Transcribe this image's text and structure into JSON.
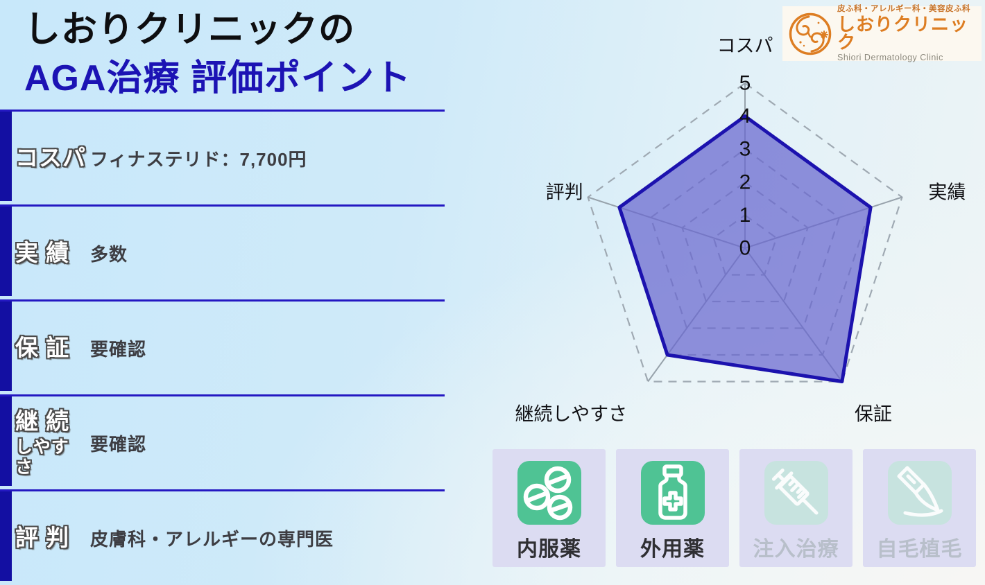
{
  "header": {
    "title_line1": "しおりクリニックの",
    "title_line2": "AGA治療 評価ポイント"
  },
  "rows": [
    {
      "key": "cospa",
      "label": "コスパ",
      "label2": "",
      "value": "フィナステリド：7,700円"
    },
    {
      "key": "jisseki",
      "label": "実 績",
      "label2": "",
      "value": "多数"
    },
    {
      "key": "hoshou",
      "label": "保 証",
      "label2": "",
      "value": "要確認"
    },
    {
      "key": "keizoku",
      "label": "継 続",
      "label2": "しやすさ",
      "value": "要確認"
    },
    {
      "key": "hyouban",
      "label": "評 判",
      "label2": "",
      "value": "皮膚科・アレルギーの専門医"
    }
  ],
  "logo": {
    "tagline": "皮ふ科・アレルギー科・美容皮ふ科",
    "name": "しおりクリニック",
    "subtitle": "Shiori Dermatology Clinic",
    "mark": "s-swirl-icon",
    "orange": "#dd7d22"
  },
  "chart_data": {
    "type": "radar",
    "categories": [
      "コスパ",
      "実績",
      "保証",
      "継続しやすさ",
      "評判"
    ],
    "values": [
      4,
      4,
      5,
      4,
      4
    ],
    "rmin": 0,
    "rmax": 5,
    "ticks": [
      "0",
      "1",
      "2",
      "3",
      "4",
      "5"
    ],
    "grid": "dashed-pentagon-rings",
    "grid_color": "#9fa9b2",
    "spoke_color": "#97a2ab",
    "fill_color": "rgba(104,103,206,0.72)",
    "stroke_color": "#1c12ae"
  },
  "treatments": [
    {
      "label": "内服薬",
      "icon": "pills-icon",
      "active": true
    },
    {
      "label": "外用薬",
      "icon": "medicine-bottle-icon",
      "active": true
    },
    {
      "label": "注入治療",
      "icon": "syringe-icon",
      "active": false
    },
    {
      "label": "自毛植毛",
      "icon": "scalpel-icon",
      "active": false
    }
  ],
  "colors": {
    "accent_navy": "#1c13b4",
    "separator_line": "#2418c2",
    "side_bar": "#130fa2",
    "active_green": "#4fc394",
    "card_lavender": "#dcdcf2",
    "logo_orange": "#dd7d22"
  }
}
